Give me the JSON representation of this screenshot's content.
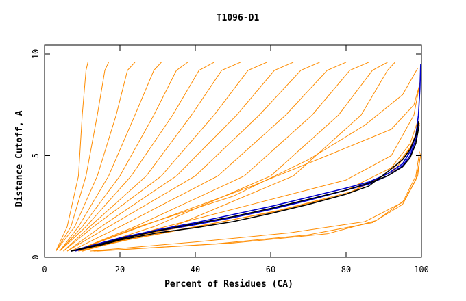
{
  "chart_data": {
    "type": "line",
    "title": "T1096-D1",
    "xlabel": "Percent of Residues (CA)",
    "ylabel": "Distance Cutoff, A",
    "xlim": [
      0,
      100
    ],
    "ylim": [
      0,
      10
    ],
    "x_ticks": [
      "0",
      "20",
      "40",
      "60",
      "80",
      "100"
    ],
    "y_ticks": [
      "0",
      "5",
      "10"
    ],
    "grid": false,
    "colors": {
      "background_models": "#ff8c00",
      "highlight_blue": "#0000cc",
      "highlight_black": "#000000",
      "frame": "#000000"
    },
    "series": [
      {
        "color": "#ff8c00",
        "x": [
          3,
          6,
          9,
          10,
          11,
          11.5
        ],
        "y": [
          0.3,
          1.5,
          4,
          7,
          9.2,
          9.6
        ]
      },
      {
        "color": "#ff8c00",
        "x": [
          3,
          7,
          11,
          14,
          16,
          17
        ],
        "y": [
          0.3,
          1.5,
          4,
          7,
          9.2,
          9.6
        ]
      },
      {
        "color": "#ff8c00",
        "x": [
          3,
          8,
          14,
          19,
          22,
          24
        ],
        "y": [
          0.3,
          1.5,
          4,
          7,
          9.2,
          9.6
        ]
      },
      {
        "color": "#ff8c00",
        "x": [
          4,
          9,
          17,
          24,
          29,
          31
        ],
        "y": [
          0.3,
          1.5,
          4,
          7,
          9.2,
          9.6
        ]
      },
      {
        "color": "#ff8c00",
        "x": [
          4,
          10,
          20,
          29,
          35,
          38
        ],
        "y": [
          0.3,
          1.5,
          4,
          7,
          9.2,
          9.6
        ]
      },
      {
        "color": "#ff8c00",
        "x": [
          4,
          11,
          23,
          34,
          41,
          45
        ],
        "y": [
          0.3,
          1.5,
          4,
          7,
          9.2,
          9.6
        ]
      },
      {
        "color": "#ff8c00",
        "x": [
          5,
          12,
          27,
          39,
          47,
          52
        ],
        "y": [
          0.3,
          1.5,
          4,
          7,
          9.2,
          9.6
        ]
      },
      {
        "color": "#ff8c00",
        "x": [
          5,
          13,
          31,
          45,
          54,
          59
        ],
        "y": [
          0.3,
          1.5,
          4,
          7,
          9.2,
          9.6
        ]
      },
      {
        "color": "#ff8c00",
        "x": [
          6,
          15,
          35,
          51,
          61,
          66
        ],
        "y": [
          0.3,
          1.5,
          4,
          7,
          9.2,
          9.6
        ]
      },
      {
        "color": "#ff8c00",
        "x": [
          6,
          17,
          40,
          57,
          68,
          73
        ],
        "y": [
          0.3,
          1.5,
          4,
          7,
          9.2,
          9.6
        ]
      },
      {
        "color": "#ff8c00",
        "x": [
          7,
          20,
          46,
          64,
          75,
          80
        ],
        "y": [
          0.3,
          1.5,
          4,
          7,
          9.2,
          9.6
        ]
      },
      {
        "color": "#ff8c00",
        "x": [
          8,
          24,
          53,
          71,
          81,
          86
        ],
        "y": [
          0.3,
          1.5,
          4,
          7,
          9.2,
          9.6
        ]
      },
      {
        "color": "#ff8c00",
        "x": [
          9,
          29,
          60,
          78,
          87,
          91
        ],
        "y": [
          0.3,
          1.5,
          4,
          7,
          9.2,
          9.6
        ]
      },
      {
        "color": "#ff8c00",
        "x": [
          10,
          34,
          66,
          84,
          91,
          93
        ],
        "y": [
          0.3,
          1.5,
          4,
          7,
          9.2,
          9.6
        ]
      },
      {
        "color": "#ff8c00",
        "x": [
          8,
          30,
          55,
          75,
          92,
          98,
          99.5
        ],
        "y": [
          0.3,
          1.8,
          3.5,
          5,
          6.3,
          7.5,
          8.5
        ]
      },
      {
        "color": "#ff8c00",
        "x": [
          8,
          25,
          50,
          70,
          85,
          95,
          99
        ],
        "y": [
          0.3,
          1.5,
          3,
          4.8,
          6.5,
          8,
          9.3
        ]
      },
      {
        "color": "#ff8c00",
        "x": [
          10,
          30,
          55,
          80,
          92,
          98,
          99.8
        ],
        "y": [
          0.3,
          1.4,
          2.6,
          3.8,
          5,
          7,
          8.8
        ]
      },
      {
        "color": "#ff8c00",
        "x": [
          8,
          20,
          40,
          60,
          80,
          92,
          97,
          99
        ],
        "y": [
          0.3,
          0.9,
          1.6,
          2.4,
          3.3,
          4.4,
          5.6,
          6.7
        ]
      },
      {
        "color": "#ff8c00",
        "x": [
          8,
          20,
          40,
          60,
          80,
          92,
          97,
          99.5
        ],
        "y": [
          0.3,
          0.8,
          1.5,
          2.2,
          3.1,
          4.2,
          5.4,
          6.5
        ]
      },
      {
        "color": "#ff8c00",
        "x": [
          9,
          22,
          42,
          62,
          82,
          93,
          97.5,
          99.5
        ],
        "y": [
          0.3,
          0.85,
          1.55,
          2.3,
          3.25,
          4.3,
          5.5,
          6.6
        ]
      },
      {
        "color": "#ff8c00",
        "x": [
          12,
          40,
          65,
          85,
          95,
          98.5,
          99.5
        ],
        "y": [
          0.3,
          0.75,
          1.2,
          1.75,
          2.7,
          4,
          5.2
        ]
      },
      {
        "color": "#ff8c00",
        "x": [
          13,
          45,
          70,
          87,
          95,
          98.5,
          99.8
        ],
        "y": [
          0.3,
          0.65,
          1.1,
          1.7,
          2.6,
          3.8,
          5
        ]
      },
      {
        "color": "#ff8c00",
        "x": [
          14,
          50,
          75,
          88,
          95.5,
          99,
          99.8
        ],
        "y": [
          0.3,
          0.7,
          1.15,
          1.8,
          2.8,
          4,
          5.1
        ]
      },
      {
        "color": "#0000cc",
        "x": [
          7,
          15,
          20,
          30,
          40,
          50,
          60,
          70,
          80,
          86,
          91,
          95,
          97,
          98.5,
          99.2,
          99.6,
          99.8
        ],
        "y": [
          0.3,
          0.7,
          0.95,
          1.35,
          1.7,
          2.1,
          2.5,
          2.95,
          3.4,
          3.7,
          4.1,
          4.6,
          5.2,
          6.0,
          7.0,
          8.3,
          9.5
        ]
      },
      {
        "color": "#0000cc",
        "x": [
          8,
          15,
          20,
          30,
          40,
          50,
          60,
          70,
          80,
          86,
          91,
          95,
          97,
          98.5,
          99.3
        ],
        "y": [
          0.3,
          0.65,
          0.9,
          1.3,
          1.6,
          1.95,
          2.35,
          2.8,
          3.3,
          3.6,
          4.0,
          4.5,
          5.0,
          5.8,
          6.6
        ]
      },
      {
        "color": "#000000",
        "x": [
          7,
          15,
          20,
          30,
          40,
          50,
          60,
          70,
          80,
          86,
          91,
          95,
          97,
          98.5,
          99.3
        ],
        "y": [
          0.3,
          0.6,
          0.85,
          1.2,
          1.45,
          1.75,
          2.15,
          2.6,
          3.1,
          3.5,
          4.2,
          4.8,
          5.3,
          6.0,
          6.7
        ]
      },
      {
        "color": "#000000",
        "x": [
          7,
          15,
          20,
          30,
          40,
          50,
          60,
          70,
          80,
          86,
          91,
          95,
          97,
          98.5,
          99.3
        ],
        "y": [
          0.3,
          0.65,
          0.9,
          1.3,
          1.65,
          2.0,
          2.4,
          2.85,
          3.3,
          3.65,
          4.0,
          4.45,
          4.9,
          5.6,
          6.4
        ]
      }
    ]
  }
}
